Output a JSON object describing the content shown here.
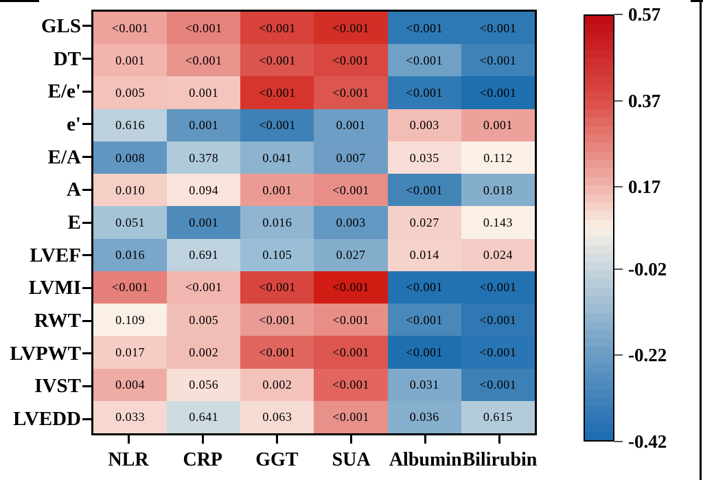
{
  "colors": {
    "background": "#ffffff",
    "frame": "#000000",
    "cell_text": "#000000"
  },
  "chart_data": {
    "type": "heatmap",
    "title": "",
    "xlabel": "",
    "ylabel": "",
    "legend_position": "right-colorbar",
    "grid": false,
    "rows": [
      "GLS",
      "DT",
      "E/e'",
      "e'",
      "E/A",
      "A",
      "E",
      "LVEF",
      "LVMI",
      "RWT",
      "LVPWT",
      "IVST",
      "LVEDD"
    ],
    "columns": [
      "NLR",
      "CRP",
      "GGT",
      "SUA",
      "Albumin",
      "Bilirubin"
    ],
    "p_values": [
      [
        "<0.001",
        "<0.001",
        "<0.001",
        "<0.001",
        "<0.001",
        "<0.001"
      ],
      [
        "0.001",
        "<0.001",
        "<0.001",
        "<0.001",
        "<0.001",
        "<0.001"
      ],
      [
        "0.005",
        "0.001",
        "<0.001",
        "<0.001",
        "<0.001",
        "<0.001"
      ],
      [
        "0.616",
        "0.001",
        "<0.001",
        "0.001",
        "0.003",
        "0.001"
      ],
      [
        "0.008",
        "0.378",
        "0.041",
        "0.007",
        "0.035",
        "0.112"
      ],
      [
        "0.010",
        "0.094",
        "0.001",
        "<0.001",
        "<0.001",
        "0.018"
      ],
      [
        "0.051",
        "0.001",
        "0.016",
        "0.003",
        "0.027",
        "0.143"
      ],
      [
        "0.016",
        "0.691",
        "0.105",
        "0.027",
        "0.014",
        "0.024"
      ],
      [
        "<0.001",
        "<0.001",
        "<0.001",
        "<0.001",
        "<0.001",
        "<0.001"
      ],
      [
        "0.109",
        "0.005",
        "<0.001",
        "<0.001",
        "<0.001",
        "<0.001"
      ],
      [
        "0.017",
        "0.002",
        "<0.001",
        "<0.001",
        "<0.001",
        "<0.001"
      ],
      [
        "0.004",
        "0.056",
        "0.002",
        "<0.001",
        "0.031",
        "<0.001"
      ],
      [
        "0.033",
        "0.641",
        "0.063",
        "<0.001",
        "0.036",
        "0.615"
      ]
    ],
    "cell_colors": [
      [
        "#EFA29C",
        "#E6827C",
        "#D8423B",
        "#D42F27",
        "#2E78B4",
        "#2E78B4"
      ],
      [
        "#F2B5AE",
        "#E9938D",
        "#DB544E",
        "#D84740",
        "#6FA0C6",
        "#3F82B7"
      ],
      [
        "#F3C2BA",
        "#F4C5BD",
        "#D6352E",
        "#DC564F",
        "#2F7AB4",
        "#1E6FB0"
      ],
      [
        "#BCD0DD",
        "#6196C1",
        "#3D81B6",
        "#6D9EC5",
        "#F2BDB6",
        "#ECA19B"
      ],
      [
        "#6096C1",
        "#AECADB",
        "#8CB3D0",
        "#6E9EC5",
        "#F8DDD6",
        "#FAF0E6"
      ],
      [
        "#F5CEC6",
        "#F9E3DB",
        "#EB9B94",
        "#E88E88",
        "#4384B7",
        "#85ADCC"
      ],
      [
        "#A5C4D8",
        "#4F8BBA",
        "#8FB5D1",
        "#6398C2",
        "#F5D0C9",
        "#FAF0E4"
      ],
      [
        "#79A6C9",
        "#BED2DF",
        "#9ABED6",
        "#84ADCC",
        "#F5D2CA",
        "#F4CCC5"
      ],
      [
        "#E5807A",
        "#F1B6AF",
        "#D8453E",
        "#D01C12",
        "#2272B2",
        "#2272B2"
      ],
      [
        "#FAF0E6",
        "#F2BFB7",
        "#EA9B94",
        "#E88E87",
        "#4A88B9",
        "#3078B4"
      ],
      [
        "#F5CDC5",
        "#F2BDB5",
        "#E0665F",
        "#DC554E",
        "#1E6FB0",
        "#2A75B3"
      ],
      [
        "#EFACA5",
        "#F8DFD7",
        "#F3C3BB",
        "#E2665F",
        "#7FA9CB",
        "#3C80B6"
      ],
      [
        "#F6D8D0",
        "#CDDAE0",
        "#F6DBD2",
        "#E8908A",
        "#86AECD",
        "#B3CCDB"
      ]
    ],
    "colorbar": {
      "max": 0.57,
      "min": -0.42,
      "tick_labels": [
        "0.57",
        "0.37",
        "0.17",
        "-0.02",
        "-0.22",
        "-0.42"
      ],
      "bands": 50,
      "gradient_stops": [
        {
          "pos": 0.0,
          "color": "#C00712"
        },
        {
          "pos": 0.202,
          "color": "#DB5049"
        },
        {
          "pos": 0.404,
          "color": "#F0B5AC"
        },
        {
          "pos": 0.5,
          "color": "#FAF0E6"
        },
        {
          "pos": 0.596,
          "color": "#C8D6DE"
        },
        {
          "pos": 0.798,
          "color": "#6B9CC4"
        },
        {
          "pos": 1.0,
          "color": "#1A6AB0"
        }
      ]
    }
  }
}
